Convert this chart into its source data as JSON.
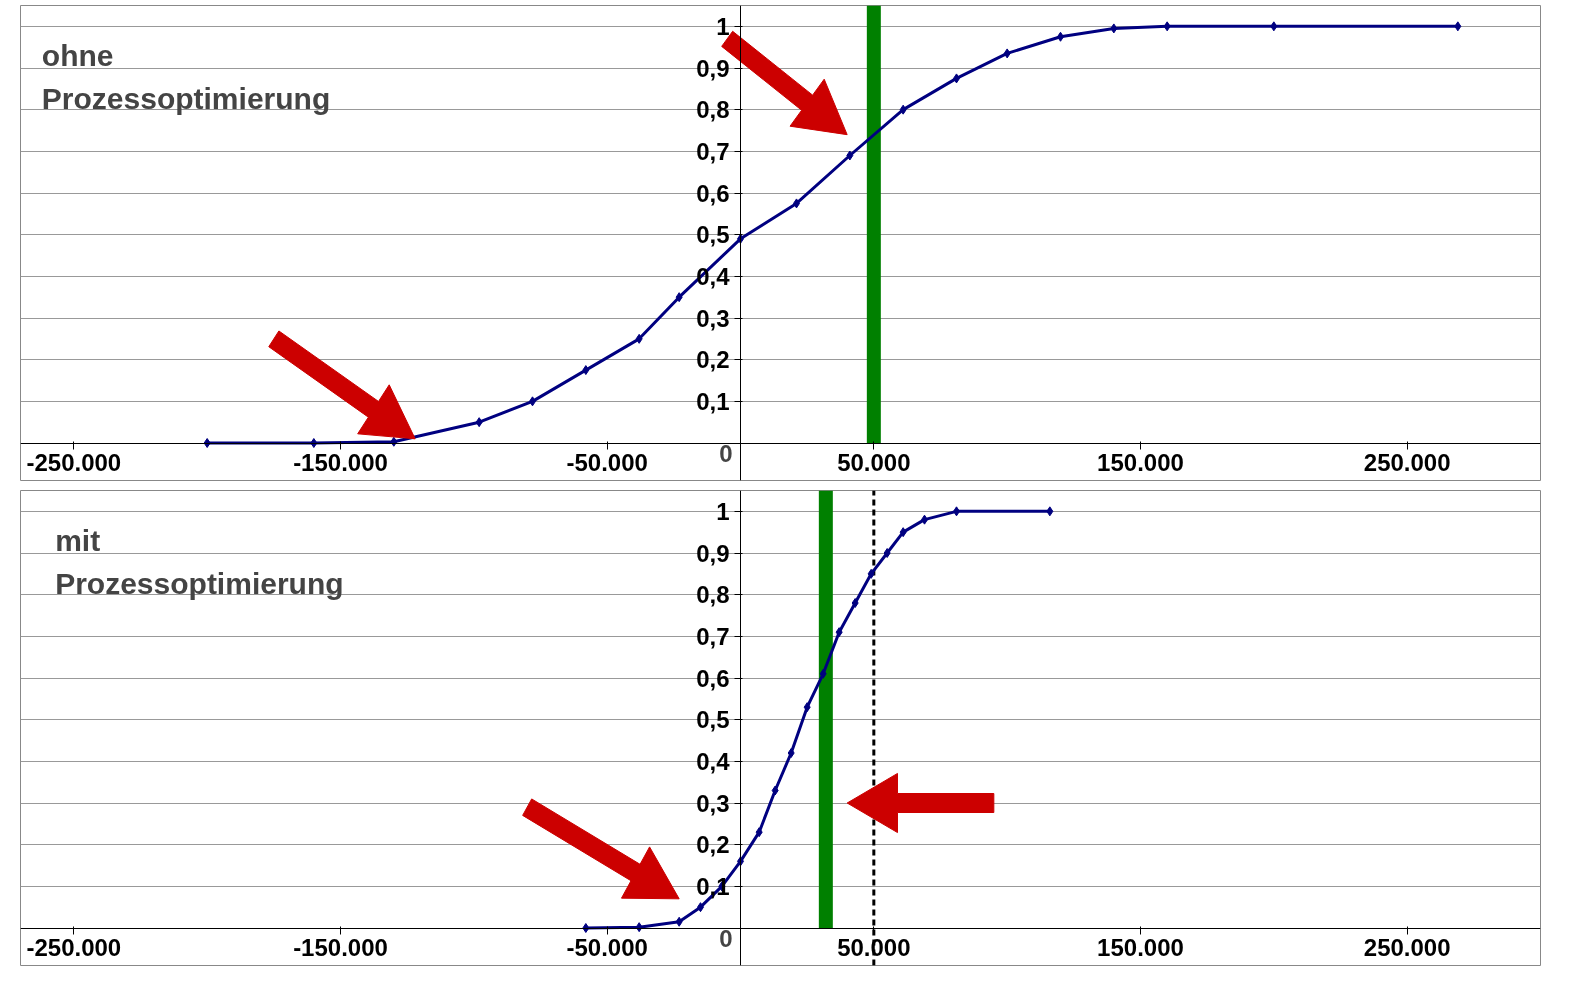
{
  "chart_data": [
    {
      "type": "line",
      "annotations": [
        "ohne Prozessoptimierung"
      ],
      "xlim": [
        -270000,
        300000
      ],
      "xticks": [
        {
          "value": -250000,
          "label": "-250.000"
        },
        {
          "value": -150000,
          "label": "-150.000"
        },
        {
          "value": -50000,
          "label": "-50.000"
        },
        {
          "value": 50000,
          "label": "50.000"
        },
        {
          "value": 150000,
          "label": "150.000"
        },
        {
          "value": 250000,
          "label": "250.000"
        }
      ],
      "yticks": [
        0,
        {
          "value": 0.1,
          "label": "0,1"
        },
        {
          "value": 0.2,
          "label": "0,2"
        },
        {
          "value": 0.3,
          "label": "0,3"
        },
        {
          "value": 0.4,
          "label": "0,4"
        },
        {
          "value": 0.5,
          "label": "0,5"
        },
        {
          "value": 0.6,
          "label": "0,6"
        },
        {
          "value": 0.7,
          "label": "0,7"
        },
        {
          "value": 0.8,
          "label": "0,8"
        },
        {
          "value": 0.9,
          "label": "0,9"
        },
        1
      ],
      "ylim": [
        -0.09,
        1.05
      ],
      "grid": "y",
      "marker": "diamond",
      "series": [
        {
          "color": "#000080",
          "x": [
            -200000,
            -160000,
            -130000,
            -98000,
            -78000,
            -58000,
            -38000,
            -23000,
            0,
            21000,
            41000,
            61000,
            81000,
            100000,
            120000,
            140000,
            160000,
            200000,
            269000
          ],
          "values": [
            0,
            0,
            0.003,
            0.05,
            0.1,
            0.175,
            0.25,
            0.35,
            0.49,
            0.575,
            0.69,
            0.8,
            0.875,
            0.935,
            0.975,
            0.995,
            1,
            1,
            1
          ]
        }
      ],
      "ref_lines": [
        {
          "axis": "x",
          "value": 50000,
          "color": "#008000",
          "line_style": "solid"
        }
      ]
    },
    {
      "type": "line",
      "annotations": [
        "mit Prozessoptimierung"
      ],
      "xlim": [
        -270000,
        300000
      ],
      "xticks": [
        {
          "value": -250000,
          "label": "-250.000"
        },
        {
          "value": -150000,
          "label": "-150.000"
        },
        {
          "value": -50000,
          "label": "-50.000"
        },
        {
          "value": 50000,
          "label": "50.000"
        },
        {
          "value": 150000,
          "label": "150.000"
        },
        {
          "value": 250000,
          "label": "250.000"
        }
      ],
      "yticks": [
        0,
        {
          "value": 0.1,
          "label": "0,1"
        },
        {
          "value": 0.2,
          "label": "0,2"
        },
        {
          "value": 0.3,
          "label": "0,3"
        },
        {
          "value": 0.4,
          "label": "0,4"
        },
        {
          "value": 0.5,
          "label": "0,5"
        },
        {
          "value": 0.6,
          "label": "0,6"
        },
        {
          "value": 0.7,
          "label": "0,7"
        },
        {
          "value": 0.8,
          "label": "0,8"
        },
        {
          "value": 0.9,
          "label": "0,9"
        },
        1
      ],
      "ylim": [
        -0.09,
        1.05
      ],
      "grid": "y",
      "marker": "diamond",
      "series": [
        {
          "color": "#000080",
          "x": [
            -58000,
            -38000,
            -23000,
            -15000,
            -7000,
            0,
            7000,
            13000,
            19000,
            25000,
            31000,
            37000,
            43000,
            49000,
            55000,
            61000,
            69000,
            81000,
            116000
          ],
          "values": [
            0,
            0.002,
            0.015,
            0.05,
            0.1,
            0.16,
            0.23,
            0.33,
            0.42,
            0.53,
            0.61,
            0.71,
            0.78,
            0.85,
            0.9,
            0.95,
            0.98,
            1,
            1
          ]
        }
      ],
      "ref_lines": [
        {
          "axis": "x",
          "value": 32000,
          "color": "#008000",
          "line_style": "solid"
        },
        {
          "axis": "x",
          "value": 50000,
          "color": "#000000",
          "line_style": "dashed"
        }
      ]
    }
  ]
}
